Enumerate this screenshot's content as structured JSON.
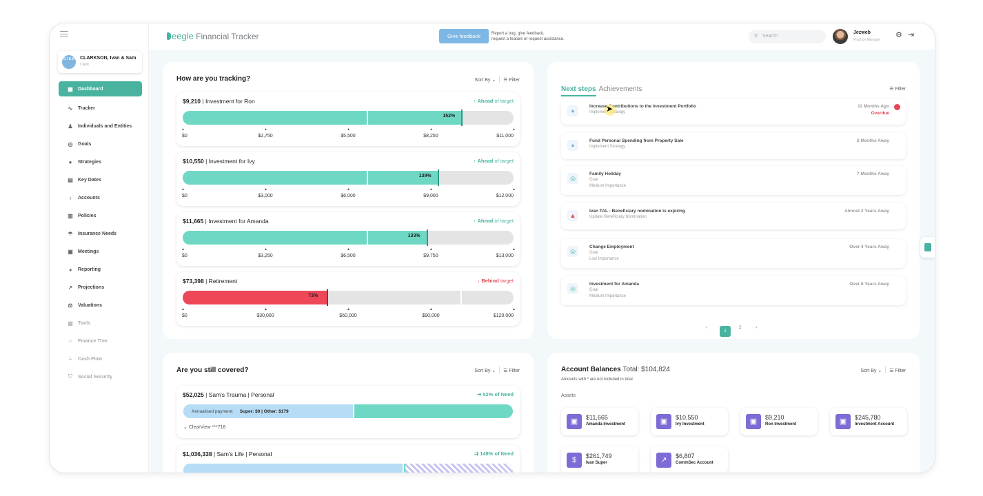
{
  "app": {
    "title": "Financial Tracker",
    "logo_name": "eegle"
  },
  "client": {
    "initials": "C I & S",
    "name": "CLARKSON, Ivan & Sam",
    "role": "Client"
  },
  "sidebar": {
    "items": [
      {
        "label": "Dashboard",
        "icon": "dashboard-icon",
        "glyph": "▦"
      },
      {
        "label": "Tracker",
        "icon": "tracker-icon",
        "glyph": "∿"
      },
      {
        "label": "Individuals and Entities",
        "icon": "person-icon",
        "glyph": "♟"
      },
      {
        "label": "Goals",
        "icon": "target-icon",
        "glyph": "◎"
      },
      {
        "label": "Strategies",
        "icon": "lightbulb-icon",
        "glyph": "●"
      },
      {
        "label": "Key Dates",
        "icon": "calendar-icon",
        "glyph": "▤"
      },
      {
        "label": "Accounts",
        "icon": "money-bag-icon",
        "glyph": "♁"
      },
      {
        "label": "Policies",
        "icon": "document-icon",
        "glyph": "▥"
      },
      {
        "label": "Insurance Needs",
        "icon": "umbrella-icon",
        "glyph": "☂"
      },
      {
        "label": "Meetings",
        "icon": "meeting-icon",
        "glyph": "▣"
      },
      {
        "label": "Reporting",
        "icon": "pie-chart-icon",
        "glyph": "◕"
      },
      {
        "label": "Projections",
        "icon": "projection-chart-icon",
        "glyph": "↗"
      },
      {
        "label": "Valuations",
        "icon": "scales-icon",
        "glyph": "⚖"
      },
      {
        "label": "Tools",
        "icon": "tools-icon",
        "glyph": "▦"
      },
      {
        "label": "Finance Tree",
        "icon": "tree-icon",
        "glyph": "⁘"
      },
      {
        "label": "Cash Flow",
        "icon": "cash-flow-icon",
        "glyph": "≡"
      },
      {
        "label": "Social Security",
        "icon": "shield-icon",
        "glyph": "⛉"
      }
    ]
  },
  "header": {
    "feedback_label": "Give feedback",
    "feedback_line1": "Report a bug, give feedback,",
    "feedback_line2": "request a feature or request assistance.",
    "search_placeholder": "Search",
    "user_name": "Jezweb",
    "user_role": "Practice Manager"
  },
  "tracking": {
    "title": "How are you tracking?",
    "sort_label": "Sort By",
    "filter_label": "Filter",
    "items": [
      {
        "amount": "$9,210",
        "name": "Investment for Ron",
        "status_word": "Ahead",
        "status_rest": " of target",
        "status": "ahead",
        "percent": 152,
        "percent_label": "152%",
        "ticks": [
          "$0",
          "$2,750",
          "$5,500",
          "$8,250",
          "$11,000"
        ]
      },
      {
        "amount": "$10,550",
        "name": "Investment for Ivy",
        "status_word": "Ahead",
        "status_rest": " of target",
        "status": "ahead",
        "percent": 139,
        "percent_label": "139%",
        "ticks": [
          "$0",
          "$3,000",
          "$6,000",
          "$9,000",
          "$12,000"
        ]
      },
      {
        "amount": "$11,665",
        "name": "Investment for Amanda",
        "status_word": "Ahead",
        "status_rest": " of target",
        "status": "ahead",
        "percent": 133,
        "percent_label": "133%",
        "ticks": [
          "$0",
          "$3,250",
          "$6,500",
          "$9,750",
          "$13,000"
        ]
      },
      {
        "amount": "$73,398",
        "name": "Retirement",
        "status_word": "Behind",
        "status_rest": " target",
        "status": "behind",
        "percent": 73,
        "percent_label": "73%",
        "ticks": [
          "$0",
          "$30,000",
          "$60,000",
          "$90,000",
          "$120,000"
        ]
      }
    ]
  },
  "next_steps": {
    "tab_active": "Next steps",
    "tab_other": "Achievements",
    "filter_label": "Filter",
    "items": [
      {
        "title": "Increase Contributions to the Investment Portfolio",
        "sub1": "Implement Strategy",
        "sub2": "",
        "time": "11 Months Ago",
        "overdue": "Overdue",
        "icon": "lightbulb-icon",
        "glyph": "●",
        "color": "#7db7e3"
      },
      {
        "title": "Fund Personal Spending from Property Sale",
        "sub1": "Implement Strategy",
        "sub2": "",
        "time": "2 Months Away",
        "overdue": "",
        "icon": "lightbulb-icon",
        "glyph": "●",
        "color": "#7db7e3"
      },
      {
        "title": "Family Holiday",
        "sub1": "Goal",
        "sub2": "Medium Importance",
        "time": "7 Months Away",
        "overdue": "",
        "icon": "target-icon",
        "glyph": "◎",
        "color": "#49b3a0"
      },
      {
        "title": "Ivan TAL - Beneficiary nomination is expiring",
        "sub1": "Update Beneficiary Nomination",
        "sub2": "",
        "time": "Almost 2 Years Away",
        "overdue": "",
        "icon": "warning-icon",
        "glyph": "▲",
        "color": "#e84558"
      },
      {
        "title": "Change Employment",
        "sub1": "Goal",
        "sub2": "Low Importance",
        "time": "Over 4 Years Away",
        "overdue": "",
        "icon": "target-icon",
        "glyph": "◎",
        "color": "#49b3a0"
      },
      {
        "title": "Investment for Amanda",
        "sub1": "Goal",
        "sub2": "Medium Importance",
        "time": "Over 8 Years Away",
        "overdue": "",
        "icon": "target-icon",
        "glyph": "◎",
        "color": "#49b3a0"
      }
    ],
    "pager": {
      "prev": "‹",
      "pages": [
        "1",
        "2"
      ],
      "next": "›"
    }
  },
  "covered": {
    "title": "Are you still covered?",
    "sort_label": "Sort By",
    "filter_label": "Filter",
    "items": [
      {
        "amount": "$52,025",
        "name": "Sam's Trauma",
        "kind": "Personal",
        "need_label": "52% of Need",
        "annual_label": "Annualised payment:",
        "super_text": "Super: $0 | Other: $179",
        "footer": "ClearView ***718"
      },
      {
        "amount": "$1,036,338",
        "name": "Sam's Life",
        "kind": "Personal",
        "need_label": "149% of Need"
      }
    ]
  },
  "balances": {
    "title": "Account Balances",
    "total_label": "Total: $104,824",
    "note": "Amounts with * are not included in total",
    "assets_label": "Assets",
    "sort_label": "Sort By",
    "filter_label": "Filter",
    "accounts": [
      {
        "amount": "$11,665",
        "name": "Amanda Investment",
        "icon": "investment-icon",
        "glyph": "▣"
      },
      {
        "amount": "$10,550",
        "name": "Ivy Investment",
        "icon": "investment-icon",
        "glyph": "▣"
      },
      {
        "amount": "$9,210",
        "name": "Ron Investment",
        "icon": "investment-icon",
        "glyph": "▣"
      },
      {
        "amount": "$245,780",
        "name": "Investment Account",
        "icon": "investment-icon",
        "glyph": "▣"
      },
      {
        "amount": "$261,749",
        "name": "Ivan Super",
        "icon": "money-bag-icon",
        "glyph": "$"
      },
      {
        "amount": "$6,807",
        "name": "CommSec Account",
        "icon": "trend-chart-icon",
        "glyph": "↗"
      }
    ]
  }
}
